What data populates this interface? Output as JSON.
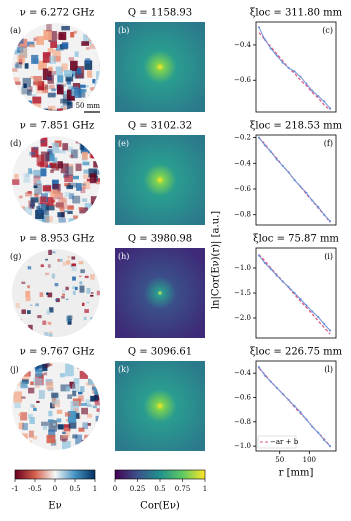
{
  "rows": [
    {
      "freq": "ν = 6.272 GHz",
      "q": "Q = 1158.93",
      "xi": "ξloc = 311.80 mm",
      "panels": [
        "(a)",
        "(b)",
        "(c)"
      ]
    },
    {
      "freq": "ν = 7.851 GHz",
      "q": "Q = 3102.32",
      "xi": "ξloc = 218.53 mm",
      "panels": [
        "(d)",
        "(e)",
        "(f)"
      ]
    },
    {
      "freq": "ν = 8.953 GHz",
      "q": "Q = 3980.98",
      "xi": "ξloc = 75.87 mm",
      "panels": [
        "(g)",
        "(h)",
        "(i)"
      ]
    },
    {
      "freq": "ν = 9.767 GHz",
      "q": "Q = 3096.61",
      "xi": "ξloc = 226.75 mm",
      "panels": [
        "(j)",
        "(k)",
        "(l)"
      ]
    }
  ],
  "scale_bar": "50 mm",
  "shared_ylabel": "ln|Cor(Eν)(r)| [a.u.]",
  "colorbars": [
    {
      "label": "Eν",
      "xlim": [
        -1,
        1
      ],
      "xticks": [
        {
          "value": -1,
          "label": "-1"
        },
        {
          "value": -0.5,
          "label": "-0.5"
        },
        0,
        0.5,
        1
      ]
    },
    {
      "label": "Cor(Eν)",
      "xlim": [
        0,
        1
      ],
      "xticks": [
        0,
        0.25,
        0.5,
        0.75,
        1
      ]
    }
  ],
  "chart_data": [
    {
      "type": "line",
      "x": [
        15,
        25,
        35,
        45,
        55,
        65,
        75,
        85,
        95,
        105,
        115,
        125,
        135
      ],
      "xlim": [
        10,
        145
      ],
      "ylim": [
        -0.78,
        -0.27
      ],
      "yticks": [
        {
          "value": -0.4,
          "label": "−0.4"
        },
        {
          "value": -0.6,
          "label": "−0.6"
        }
      ],
      "series": [
        {
          "color": "#e0507a",
          "style": "dashed",
          "values": [
            -0.33,
            -0.37,
            -0.41,
            -0.45,
            -0.49,
            -0.53,
            -0.56,
            -0.6,
            -0.63,
            -0.67,
            -0.7,
            -0.74,
            -0.77
          ]
        },
        {
          "color": "#7094d8",
          "values": [
            -0.3,
            -0.37,
            -0.42,
            -0.46,
            -0.5,
            -0.53,
            -0.55,
            -0.58,
            -0.62,
            -0.66,
            -0.69,
            -0.72,
            -0.76
          ]
        }
      ]
    },
    {
      "type": "line",
      "x": [
        15,
        25,
        35,
        45,
        55,
        65,
        75,
        85,
        95,
        105,
        115,
        125,
        135
      ],
      "xlim": [
        10,
        145
      ],
      "ylim": [
        -0.88,
        -0.18
      ],
      "yticks": [
        {
          "value": -0.2,
          "label": "−0.2"
        },
        {
          "value": -0.4,
          "label": "−0.4"
        },
        {
          "value": -0.6,
          "label": "−0.6"
        },
        {
          "value": -0.8,
          "label": "−0.8"
        }
      ],
      "series": [
        {
          "color": "#e0507a",
          "style": "dashed",
          "values": [
            -0.2,
            -0.25,
            -0.31,
            -0.36,
            -0.42,
            -0.47,
            -0.53,
            -0.58,
            -0.64,
            -0.69,
            -0.75,
            -0.8,
            -0.86
          ]
        },
        {
          "color": "#7094d8",
          "values": [
            -0.2,
            -0.26,
            -0.31,
            -0.37,
            -0.42,
            -0.47,
            -0.53,
            -0.58,
            -0.63,
            -0.69,
            -0.74,
            -0.8,
            -0.85
          ]
        }
      ]
    },
    {
      "type": "line",
      "x": [
        15,
        25,
        35,
        45,
        55,
        65,
        75,
        85,
        95,
        105,
        115,
        125,
        135
      ],
      "xlim": [
        10,
        145
      ],
      "ylim": [
        -2.4,
        -0.6
      ],
      "yticks": [
        {
          "value": -1,
          "label": "−1.0"
        },
        {
          "value": -1.5,
          "label": "−1.5"
        },
        {
          "value": -2,
          "label": "−2.0"
        }
      ],
      "series": [
        {
          "color": "#e0507a",
          "style": "dashed",
          "values": [
            -0.73,
            -0.86,
            -1.0,
            -1.13,
            -1.26,
            -1.39,
            -1.53,
            -1.66,
            -1.79,
            -1.92,
            -2.06,
            -2.19,
            -2.32
          ]
        },
        {
          "color": "#7094d8",
          "values": [
            -0.75,
            -0.9,
            -1.02,
            -1.15,
            -1.27,
            -1.38,
            -1.5,
            -1.62,
            -1.75,
            -1.87,
            -1.98,
            -2.12,
            -2.25
          ]
        }
      ]
    },
    {
      "type": "line",
      "x": [
        15,
        25,
        35,
        45,
        55,
        65,
        75,
        85,
        95,
        105,
        115,
        125,
        135
      ],
      "xlim": [
        10,
        145
      ],
      "ylim": [
        -1.04,
        -0.3
      ],
      "yticks": [
        {
          "value": -0.4,
          "label": "−0.4"
        },
        {
          "value": -0.6,
          "label": "−0.6"
        },
        {
          "value": -0.8,
          "label": "−0.8"
        },
        {
          "value": -1,
          "label": "−1.0"
        }
      ],
      "xticks": [
        50,
        100
      ],
      "xlabel": "r [mm]",
      "legend": "lower left",
      "series": [
        {
          "name": "−ar + b",
          "color": "#e0507a",
          "style": "dashed",
          "values": [
            -0.36,
            -0.41,
            -0.47,
            -0.52,
            -0.57,
            -0.62,
            -0.68,
            -0.73,
            -0.78,
            -0.84,
            -0.89,
            -0.94,
            -1.0
          ]
        },
        {
          "color": "#7094d8",
          "values": [
            -0.35,
            -0.42,
            -0.47,
            -0.52,
            -0.57,
            -0.62,
            -0.67,
            -0.72,
            -0.78,
            -0.84,
            -0.89,
            -0.95,
            -1.0
          ]
        }
      ]
    }
  ]
}
